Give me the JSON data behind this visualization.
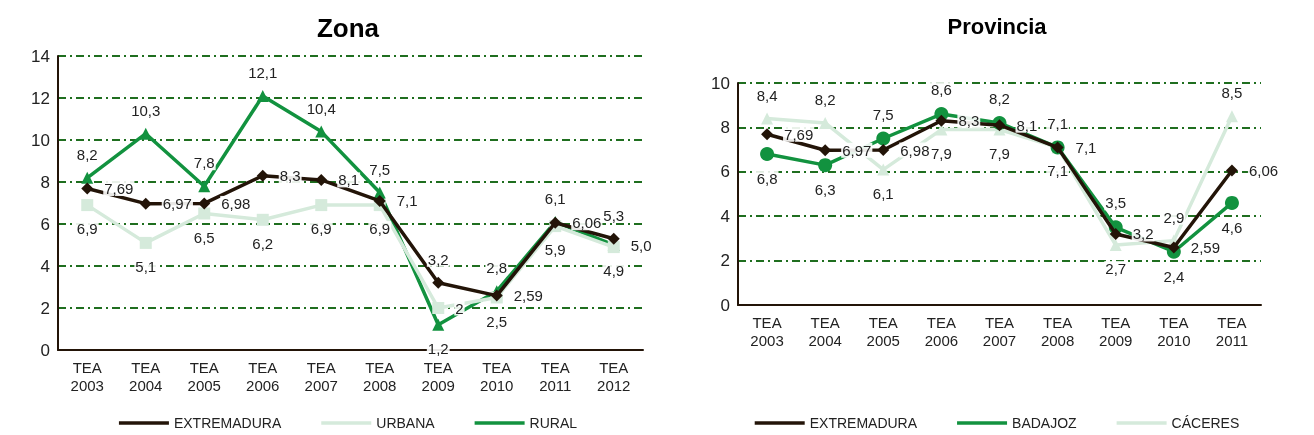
{
  "chart_data": [
    {
      "type": "line",
      "title": "Zona",
      "categories": [
        "TEA\n2003",
        "TEA\n2004",
        "TEA\n2005",
        "TEA\n2006",
        "TEA\n2007",
        "TEA\n2008",
        "TEA\n2009",
        "TEA\n2010",
        "TEA\n2011",
        "TEA\n2012"
      ],
      "ylim": [
        0,
        14
      ],
      "yticks": [
        0,
        2,
        4,
        6,
        8,
        10,
        12,
        14
      ],
      "grid": "y",
      "legend": "bottom",
      "line_style": "solid",
      "series": [
        {
          "name": "EXTREMADURA",
          "color": "#231408",
          "marker": "diamond",
          "values": [
            7.69,
            6.97,
            6.98,
            8.3,
            8.1,
            7.1,
            3.2,
            2.59,
            6.06,
            5.3
          ],
          "value_labels": [
            "7,69",
            "6,97",
            "6,98",
            "8,3",
            "8,1",
            "7,1",
            "3,2",
            "2,59",
            "6,06",
            "5,3"
          ]
        },
        {
          "name": "URBANA",
          "color": "#d5eadb",
          "marker": "square",
          "values": [
            6.9,
            5.1,
            6.5,
            6.2,
            6.9,
            6.9,
            2,
            2.5,
            5.9,
            4.9
          ],
          "value_labels": [
            "6,9",
            "5,1",
            "6,5",
            "6,2",
            "6,9",
            "6,9",
            "2",
            "2,5",
            "5,9",
            "4,9"
          ]
        },
        {
          "name": "RURAL",
          "color": "#12923f",
          "marker": "triangle",
          "values": [
            8.2,
            10.3,
            7.8,
            12.1,
            10.4,
            7.5,
            1.2,
            2.8,
            6.1,
            5.0
          ],
          "value_labels": [
            "8,2",
            "10,3",
            "7,8",
            "12,1",
            "10,4",
            "7,5",
            "1,2",
            "2,8",
            "6,1",
            "5,0"
          ]
        }
      ]
    },
    {
      "type": "line",
      "title": "Provincia",
      "categories": [
        "TEA\n2003",
        "TEA\n2004",
        "TEA\n2005",
        "TEA\n2006",
        "TEA\n2007",
        "TEA\n2008",
        "TEA\n2009",
        "TEA\n2010",
        "TEA\n2011"
      ],
      "ylim": [
        0,
        10
      ],
      "yticks": [
        0,
        2,
        4,
        6,
        8,
        10
      ],
      "grid": "y",
      "legend": "bottom",
      "line_style": "solid",
      "series": [
        {
          "name": "EXTREMADURA",
          "color": "#231408",
          "marker": "diamond",
          "values": [
            7.69,
            6.97,
            6.98,
            8.3,
            8.1,
            7.1,
            3.2,
            2.59,
            6.06
          ],
          "value_labels": [
            "7,69",
            "6,97",
            "6,98",
            "8,3",
            "8,1",
            "7,1",
            "3,2",
            "2,59",
            "6,06"
          ]
        },
        {
          "name": "BADAJOZ",
          "color": "#12923f",
          "marker": "circle",
          "values": [
            6.8,
            6.3,
            7.5,
            8.6,
            8.2,
            7.1,
            3.5,
            2.4,
            4.6
          ],
          "value_labels": [
            "6,8",
            "6,3",
            "7,5",
            "8,6",
            "8,2",
            "7,1",
            "3,5",
            "2,4",
            "4,6"
          ]
        },
        {
          "name": "CÁCERES",
          "color": "#d5eadb",
          "marker": "triangle",
          "values": [
            8.4,
            8.2,
            6.1,
            7.9,
            7.9,
            7.1,
            2.7,
            2.9,
            8.5
          ],
          "value_labels": [
            "8,4",
            "8,2",
            "6,1",
            "7,9",
            "7,9",
            "7,1",
            "2,7",
            "2,9",
            "8,5"
          ]
        }
      ]
    }
  ]
}
